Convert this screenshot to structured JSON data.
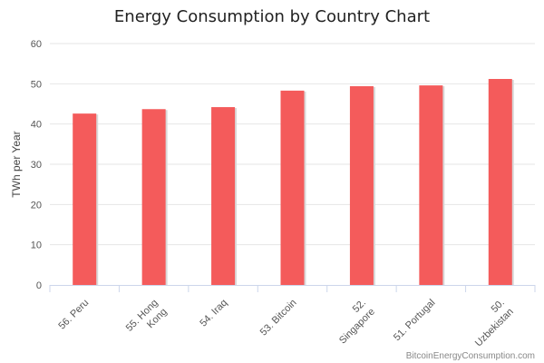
{
  "chart_data": {
    "type": "bar",
    "title": "Energy Consumption by Country Chart",
    "xlabel": "",
    "ylabel": "TWh per Year",
    "ylim": [
      0,
      60
    ],
    "yticks": [
      0,
      10,
      20,
      30,
      40,
      50,
      60
    ],
    "grid": true,
    "legend": "none",
    "categories": [
      [
        "56. Peru"
      ],
      [
        "55. Hong",
        "Kong"
      ],
      [
        "54. Iraq"
      ],
      [
        "53. Bitcoin"
      ],
      [
        "52.",
        "Singapore"
      ],
      [
        "51. Portugal"
      ],
      [
        "50.",
        "Uzbekistan"
      ]
    ],
    "values": [
      42.6,
      43.7,
      44.2,
      48.3,
      49.4,
      49.6,
      51.2
    ],
    "credit": "BitcoinEnergyConsumption.com"
  },
  "colors": {
    "bar": "#f45b5b",
    "bar_shadow": "#d8d8d8",
    "grid": "#e6e6e6",
    "axis": "#ccd6eb"
  }
}
